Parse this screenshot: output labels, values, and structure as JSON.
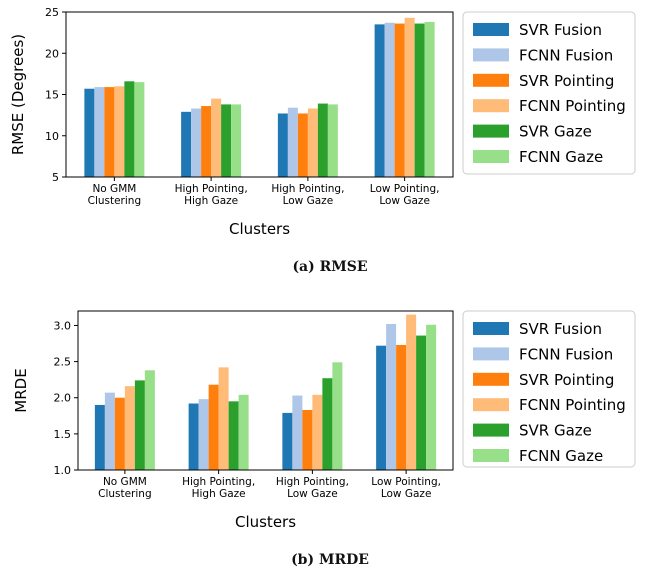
{
  "colors": {
    "SVR Fusion": "#1f77b4",
    "FCNN Fusion": "#aec7e8",
    "SVR Pointing": "#ff7f0e",
    "FCNN Pointing": "#ffbb78",
    "SVR Gaze": "#2ca02c",
    "FCNN Gaze": "#98df8a"
  },
  "captions": {
    "a": "(a) RMSE",
    "b": "(b) MRDE"
  },
  "chart_data": [
    {
      "type": "bar",
      "title": "",
      "xlabel": "Clusters",
      "ylabel": "RMSE (Degrees)",
      "ylim": [
        5,
        25
      ],
      "yticks": [
        5,
        10,
        15,
        20,
        25
      ],
      "categories": [
        "No GMM\nClustering",
        "High Pointing,\nHigh Gaze",
        "High Pointing,\nLow Gaze",
        "Low Pointing,\nLow Gaze"
      ],
      "legend_position": "right",
      "series": [
        {
          "name": "SVR Fusion",
          "values": [
            15.7,
            12.9,
            12.7,
            23.5
          ]
        },
        {
          "name": "FCNN Fusion",
          "values": [
            15.9,
            13.3,
            13.4,
            23.7
          ]
        },
        {
          "name": "SVR Pointing",
          "values": [
            15.9,
            13.6,
            12.7,
            23.6
          ]
        },
        {
          "name": "FCNN Pointing",
          "values": [
            16.0,
            14.5,
            13.3,
            24.3
          ]
        },
        {
          "name": "SVR Gaze",
          "values": [
            16.6,
            13.8,
            13.9,
            23.6
          ]
        },
        {
          "name": "FCNN Gaze",
          "values": [
            16.5,
            13.8,
            13.8,
            23.8
          ]
        }
      ]
    },
    {
      "type": "bar",
      "title": "",
      "xlabel": "Clusters",
      "ylabel": "MRDE",
      "ylim": [
        1.0,
        3.2
      ],
      "yticks": [
        1.0,
        1.5,
        2.0,
        2.5,
        3.0
      ],
      "categories": [
        "No GMM\nClustering",
        "High Pointing,\nHigh Gaze",
        "High Pointing,\nLow Gaze",
        "Low Pointing,\nLow Gaze"
      ],
      "legend_position": "right",
      "series": [
        {
          "name": "SVR Fusion",
          "values": [
            1.9,
            1.92,
            1.79,
            2.72
          ]
        },
        {
          "name": "FCNN Fusion",
          "values": [
            2.07,
            1.98,
            2.03,
            3.02
          ]
        },
        {
          "name": "SVR Pointing",
          "values": [
            2.0,
            2.18,
            1.83,
            2.73
          ]
        },
        {
          "name": "FCNN Pointing",
          "values": [
            2.16,
            2.42,
            2.04,
            3.15
          ]
        },
        {
          "name": "SVR Gaze",
          "values": [
            2.24,
            1.95,
            2.27,
            2.86
          ]
        },
        {
          "name": "FCNN Gaze",
          "values": [
            2.38,
            2.04,
            2.49,
            3.01
          ]
        }
      ]
    }
  ]
}
